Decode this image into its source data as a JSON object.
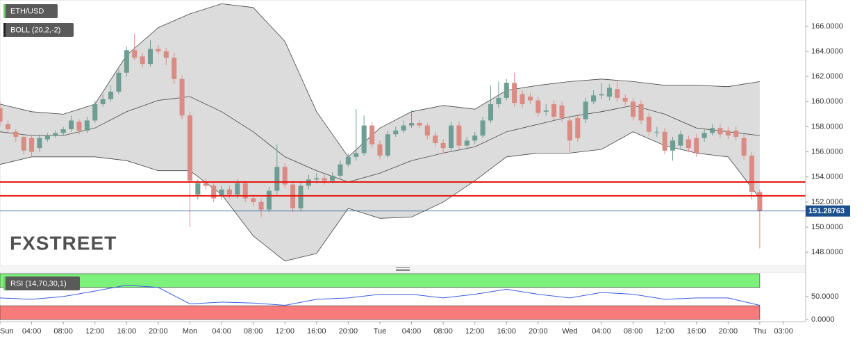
{
  "chart_data": [
    {
      "type": "candlestick",
      "title": "ETH/USD",
      "indicator": "BOLL (20,2,-2)",
      "watermark": "FXSTREET",
      "x": [
        0,
        1,
        2,
        3,
        4,
        5,
        6,
        7,
        8,
        9,
        10,
        11,
        12,
        13,
        14,
        15,
        16,
        17,
        18,
        19,
        20,
        21,
        22,
        23,
        24,
        25,
        26,
        27,
        28,
        29,
        30,
        31,
        32,
        33,
        34,
        35,
        36,
        37,
        38,
        39,
        40,
        41,
        42,
        43,
        44,
        45,
        46,
        47,
        48,
        49,
        50,
        51,
        52,
        53,
        54,
        55,
        56,
        57,
        58,
        59,
        60,
        61,
        62,
        63,
        64,
        65,
        66,
        67,
        68,
        69,
        70,
        71,
        72,
        73,
        74,
        75,
        76,
        77,
        78,
        79,
        80,
        81,
        82,
        83,
        84,
        85,
        86,
        87,
        88,
        89,
        90,
        91,
        92,
        93,
        94,
        95,
        96
      ],
      "open": [
        159.5,
        158.2,
        157.6,
        157.2,
        157.1,
        156.3,
        157.0,
        157.3,
        157.5,
        157.8,
        158.4,
        157.7,
        158.5,
        159.8,
        160.2,
        160.8,
        162.3,
        164.1,
        163.6,
        163.0,
        164.2,
        164.0,
        163.5,
        161.8,
        158.9,
        152.6,
        153.5,
        153.3,
        152.5,
        153.0,
        152.6,
        153.5,
        152.3,
        152.0,
        151.4,
        152.9,
        154.8,
        153.4,
        151.5,
        153.3,
        153.8,
        153.9,
        153.7,
        154.1,
        155.0,
        155.6,
        155.9,
        158.1,
        156.6,
        155.7,
        157.4,
        157.7,
        158.1,
        158.3,
        158.1,
        157.3,
        156.7,
        156.3,
        158.1,
        156.5,
        156.9,
        157.3,
        158.5,
        159.8,
        160.3,
        161.5,
        160.6,
        160.4,
        160.1,
        159.2,
        159.8,
        159.7,
        158.5,
        158.7,
        158.6,
        160.0,
        160.5,
        160.4,
        161.0,
        160.3,
        160.0,
        159.8,
        158.8,
        157.6,
        157.6,
        156.1,
        156.5,
        157.0,
        157.1,
        157.1,
        157.5,
        157.9,
        157.7,
        157.7,
        157.1,
        155.7,
        152.8
      ],
      "high": [
        160.0,
        158.5,
        157.8,
        157.4,
        157.3,
        157.4,
        157.5,
        157.7,
        158.0,
        158.9,
        158.6,
        158.8,
        160.1,
        160.6,
        161.3,
        162.6,
        164.4,
        165.4,
        163.9,
        164.9,
        164.5,
        164.3,
        163.9,
        162.1,
        159.2,
        153.8,
        153.9,
        153.5,
        153.3,
        153.3,
        153.8,
        153.7,
        152.6,
        152.3,
        153.2,
        156.6,
        155.1,
        153.7,
        153.6,
        154.2,
        154.3,
        154.2,
        154.4,
        155.3,
        155.9,
        159.4,
        158.9,
        158.4,
        156.9,
        157.7,
        158.0,
        158.5,
        159.3,
        158.5,
        158.3,
        157.6,
        157.0,
        158.4,
        158.4,
        157.2,
        157.6,
        158.8,
        161.3,
        161.6,
        161.8,
        162.3,
        160.9,
        160.7,
        160.4,
        159.8,
        160.1,
        160.0,
        158.8,
        159.0,
        160.3,
        160.9,
        161.5,
        161.4,
        161.6,
        160.6,
        160.3,
        160.1,
        159.1,
        158.0,
        157.9,
        157.2,
        157.7,
        157.3,
        157.4,
        157.8,
        158.2,
        158.2,
        158.0,
        158.0,
        157.4,
        156.0,
        153.0
      ],
      "low": [
        158.0,
        157.6,
        156.8,
        155.8,
        155.6,
        156.0,
        156.8,
        157.1,
        157.3,
        157.6,
        157.4,
        157.5,
        158.3,
        159.6,
        160.0,
        160.6,
        162.0,
        163.3,
        162.7,
        162.8,
        163.8,
        162.9,
        161.4,
        158.6,
        150.0,
        152.2,
        153.0,
        152.0,
        152.2,
        152.3,
        152.3,
        152.0,
        151.7,
        150.8,
        151.2,
        152.6,
        153.1,
        151.2,
        151.3,
        153.0,
        153.5,
        153.4,
        153.5,
        153.9,
        154.8,
        155.3,
        155.7,
        156.3,
        155.4,
        155.5,
        157.2,
        157.5,
        157.9,
        157.9,
        157.0,
        156.4,
        155.9,
        156.1,
        156.2,
        156.2,
        156.6,
        157.1,
        158.3,
        159.5,
        160.1,
        159.6,
        159.5,
        159.8,
        158.8,
        158.9,
        158.5,
        158.4,
        156.0,
        156.8,
        158.3,
        159.8,
        160.2,
        160.1,
        160.0,
        159.7,
        158.5,
        158.2,
        157.3,
        157.2,
        155.8,
        155.3,
        156.2,
        156.0,
        155.6,
        156.8,
        157.3,
        157.1,
        157.0,
        156.9,
        155.4,
        152.2,
        148.3
      ],
      "close": [
        158.4,
        157.8,
        157.2,
        156.1,
        156.0,
        157.1,
        157.3,
        157.5,
        157.8,
        158.5,
        157.7,
        158.5,
        159.8,
        160.2,
        160.8,
        162.3,
        164.1,
        163.5,
        163.0,
        164.2,
        164.0,
        163.5,
        161.8,
        158.9,
        153.7,
        153.5,
        153.3,
        152.3,
        153.0,
        152.6,
        153.5,
        152.3,
        152.0,
        151.4,
        152.9,
        154.8,
        153.4,
        151.5,
        153.3,
        153.8,
        153.9,
        153.7,
        154.1,
        155.0,
        155.6,
        155.9,
        158.1,
        156.6,
        155.7,
        157.4,
        157.7,
        158.1,
        158.3,
        158.1,
        157.3,
        156.7,
        156.3,
        158.1,
        156.5,
        156.9,
        157.3,
        158.5,
        159.8,
        160.3,
        161.5,
        159.9,
        159.8,
        160.1,
        159.1,
        159.3,
        158.8,
        158.7,
        156.9,
        157.1,
        160.0,
        160.5,
        160.6,
        161.1,
        160.3,
        160.0,
        158.8,
        158.5,
        157.6,
        157.6,
        156.1,
        156.9,
        157.4,
        156.3,
        155.9,
        157.5,
        157.9,
        157.4,
        157.3,
        157.2,
        155.7,
        152.8,
        151.3
      ],
      "up_color": "#6e9e93",
      "down_color": "#d98b84",
      "bands": {
        "x": [
          0,
          4,
          8,
          12,
          16,
          20,
          24,
          28,
          32,
          36,
          40,
          44,
          48,
          52,
          56,
          60,
          64,
          68,
          72,
          76,
          80,
          84,
          88,
          92,
          96
        ],
        "upper": [
          159.8,
          159.2,
          159.0,
          159.8,
          163.7,
          165.9,
          167.0,
          167.8,
          167.5,
          164.8,
          159.2,
          155.6,
          157.9,
          159.2,
          159.7,
          159.4,
          160.9,
          161.3,
          161.6,
          161.8,
          161.6,
          161.3,
          161.3,
          161.2,
          161.6
        ],
        "middle": [
          157.6,
          157.3,
          157.3,
          157.9,
          159.2,
          160.1,
          160.4,
          159.2,
          157.6,
          155.6,
          154.5,
          153.6,
          154.3,
          155.3,
          155.9,
          156.4,
          157.6,
          158.2,
          158.8,
          159.2,
          159.7,
          159.0,
          157.9,
          157.6,
          157.3
        ],
        "lower": [
          155.0,
          155.6,
          155.6,
          155.6,
          155.3,
          154.5,
          154.5,
          152.6,
          149.3,
          147.3,
          147.9,
          151.5,
          150.7,
          150.8,
          152.0,
          153.7,
          155.6,
          155.9,
          155.9,
          156.2,
          157.6,
          156.5,
          155.9,
          155.6,
          152.3
        ],
        "color": "#444444",
        "fill": "#dcdcdc"
      },
      "levels": [
        153.6,
        152.5
      ],
      "level_color": "#e8150f",
      "last_price": 151.28763,
      "last_price_color": "#1b4f8f",
      "xlim": [
        0,
        101.8
      ],
      "ylim": [
        146.9,
        168.1
      ],
      "yticks": [
        {
          "value": 148,
          "label": "148.0000"
        },
        {
          "value": 150,
          "label": "150.0000"
        },
        {
          "value": 152,
          "label": "152.0000"
        },
        {
          "value": 154,
          "label": "154.0000"
        },
        {
          "value": 156,
          "label": "156.0000"
        },
        {
          "value": 158,
          "label": "158.0000"
        },
        {
          "value": 160,
          "label": "160.0000"
        },
        {
          "value": 162,
          "label": "162.0000"
        },
        {
          "value": 164,
          "label": "164.0000"
        },
        {
          "value": 166,
          "label": "166.0000"
        }
      ],
      "grid": true
    },
    {
      "type": "line",
      "title": "RSI (14,70,30,1)",
      "x": [
        0,
        4,
        8,
        12,
        16,
        20,
        24,
        28,
        32,
        36,
        40,
        44,
        48,
        52,
        56,
        60,
        64,
        68,
        72,
        76,
        80,
        84,
        88,
        92,
        96
      ],
      "values": [
        47,
        44,
        50,
        62,
        75,
        70,
        34,
        38,
        36,
        31,
        44,
        47,
        55,
        55,
        47,
        55,
        66,
        55,
        47,
        59,
        55,
        44,
        47,
        47,
        31
      ],
      "color": "#3a5de0",
      "overbought": [
        70,
        100
      ],
      "overbought_color": "#7cf27c",
      "oversold": [
        0,
        30
      ],
      "oversold_color": "#f87b7b",
      "xlim": [
        0,
        101.8
      ],
      "ylim": [
        -4.7,
        103
      ],
      "yticks": [
        {
          "value": 0,
          "label": "0.0000"
        },
        {
          "value": 50,
          "label": "50.0000"
        }
      ],
      "xticks": [
        {
          "value": 0,
          "label": "Sun"
        },
        {
          "value": 4,
          "label": "04:00"
        },
        {
          "value": 8,
          "label": "08:00"
        },
        {
          "value": 12,
          "label": "12:00"
        },
        {
          "value": 16,
          "label": "16:00"
        },
        {
          "value": 20,
          "label": "20:00"
        },
        {
          "value": 24,
          "label": "Mon"
        },
        {
          "value": 28,
          "label": "04:00"
        },
        {
          "value": 32,
          "label": "08:00"
        },
        {
          "value": 36,
          "label": "12:00"
        },
        {
          "value": 40,
          "label": "16:00"
        },
        {
          "value": 44,
          "label": "20:00"
        },
        {
          "value": 48,
          "label": "Tue"
        },
        {
          "value": 52,
          "label": "04:00"
        },
        {
          "value": 56,
          "label": "08:00"
        },
        {
          "value": 60,
          "label": "12:00"
        },
        {
          "value": 64,
          "label": "16:00"
        },
        {
          "value": 68,
          "label": "20:00"
        },
        {
          "value": 72,
          "label": "Wed"
        },
        {
          "value": 76,
          "label": "04:00"
        },
        {
          "value": 80,
          "label": "08:00"
        },
        {
          "value": 84,
          "label": "12:00"
        },
        {
          "value": 88,
          "label": "16:00"
        },
        {
          "value": 92,
          "label": "20:00"
        },
        {
          "value": 96,
          "label": "Thu"
        },
        {
          "value": 99,
          "label": "03:00"
        }
      ],
      "grid": true
    }
  ]
}
